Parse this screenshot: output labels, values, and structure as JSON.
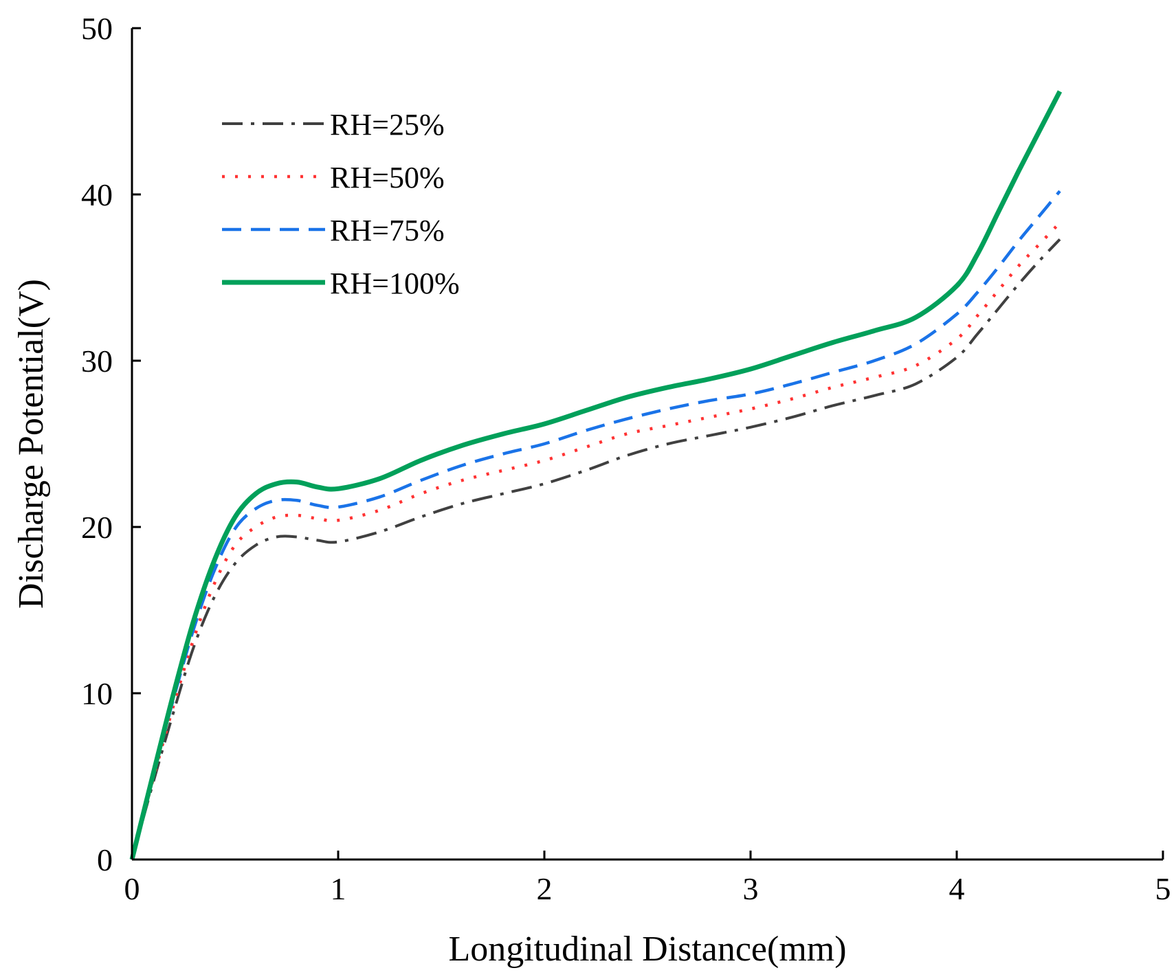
{
  "chart_data": {
    "type": "line",
    "title": "",
    "xlabel": "Longitudinal Distance(mm)",
    "ylabel": "Discharge Potential(V)",
    "xlim": [
      0,
      5
    ],
    "ylim": [
      0,
      50
    ],
    "xticks": [
      0,
      1,
      2,
      3,
      4,
      5
    ],
    "yticks": [
      0,
      10,
      20,
      30,
      40,
      50
    ],
    "grid": false,
    "legend_position": "top-left",
    "x": [
      0,
      0.1,
      0.2,
      0.3,
      0.4,
      0.5,
      0.6,
      0.7,
      0.8,
      0.9,
      1.0,
      1.2,
      1.4,
      1.6,
      1.8,
      2.0,
      2.2,
      2.4,
      2.6,
      2.8,
      3.0,
      3.2,
      3.4,
      3.6,
      3.8,
      4.0,
      4.1,
      4.2,
      4.3,
      4.4,
      4.5
    ],
    "series": [
      {
        "name": "RH=25%",
        "color": "#404040",
        "style": "dashdot",
        "values": [
          0,
          4.5,
          8.8,
          12.8,
          15.8,
          17.8,
          18.9,
          19.4,
          19.4,
          19.2,
          19.1,
          19.7,
          20.6,
          21.4,
          22.0,
          22.6,
          23.4,
          24.3,
          25.0,
          25.5,
          26.0,
          26.6,
          27.3,
          27.9,
          28.6,
          30.2,
          31.6,
          33.1,
          34.6,
          36.0,
          37.3
        ]
      },
      {
        "name": "RH=50%",
        "color": "#ff3333",
        "style": "dotted",
        "values": [
          0,
          4.7,
          9.2,
          13.3,
          16.6,
          18.9,
          20.0,
          20.6,
          20.7,
          20.5,
          20.4,
          21.0,
          22.0,
          22.8,
          23.4,
          24.0,
          24.8,
          25.6,
          26.1,
          26.6,
          27.1,
          27.7,
          28.4,
          29.0,
          29.7,
          31.3,
          32.7,
          34.2,
          35.7,
          37.0,
          38.3
        ]
      },
      {
        "name": "RH=75%",
        "color": "#1a73e8",
        "style": "dashed",
        "values": [
          0,
          4.9,
          9.6,
          13.9,
          17.4,
          19.9,
          21.1,
          21.6,
          21.6,
          21.3,
          21.2,
          21.8,
          22.8,
          23.7,
          24.4,
          25.0,
          25.8,
          26.5,
          27.1,
          27.6,
          28.0,
          28.6,
          29.3,
          30.0,
          31.0,
          32.8,
          34.1,
          35.6,
          37.2,
          38.7,
          40.2
        ]
      },
      {
        "name": "RH=100%",
        "color": "#00a05a",
        "style": "solid",
        "values": [
          0,
          5.0,
          9.9,
          14.4,
          18.0,
          20.6,
          22.0,
          22.6,
          22.7,
          22.4,
          22.3,
          22.9,
          24.0,
          24.9,
          25.6,
          26.2,
          27.0,
          27.8,
          28.4,
          28.9,
          29.5,
          30.3,
          31.1,
          31.8,
          32.6,
          34.5,
          36.4,
          38.9,
          41.4,
          43.8,
          46.2
        ]
      }
    ]
  }
}
